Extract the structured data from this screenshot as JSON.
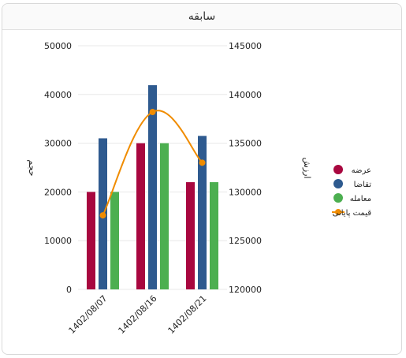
{
  "card": {
    "title": "سابقه"
  },
  "colors": {
    "supply": "#a8073f",
    "demand": "#2e5a8f",
    "trade": "#4caf50",
    "price": "#f08c00",
    "grid": "#e8e8e8"
  },
  "chart_data": {
    "type": "bar",
    "categories": [
      "1402/08/07",
      "1402/08/16",
      "1402/08/21"
    ],
    "series": [
      {
        "name": "عرضه",
        "type": "bar",
        "axis": "left",
        "values": [
          20000,
          30000,
          22000
        ]
      },
      {
        "name": "تقاضا",
        "type": "bar",
        "axis": "left",
        "values": [
          31000,
          41900,
          31500
        ]
      },
      {
        "name": "معامله",
        "type": "bar",
        "axis": "left",
        "values": [
          20000,
          30000,
          22000
        ]
      },
      {
        "name": "قیمت پایانی",
        "type": "line",
        "axis": "right",
        "values": [
          127600,
          138200,
          133000
        ]
      }
    ],
    "y_left": {
      "label": "حجم",
      "min": 0,
      "max": 50000,
      "ticks": [
        "0",
        "10000",
        "20000",
        "30000",
        "40000",
        "50000"
      ]
    },
    "y_right": {
      "label": "ارزش",
      "min": 120000,
      "max": 145000,
      "ticks": [
        "120000",
        "125000",
        "130000",
        "135000",
        "140000",
        "145000"
      ]
    },
    "grid": true,
    "legend": "right"
  }
}
